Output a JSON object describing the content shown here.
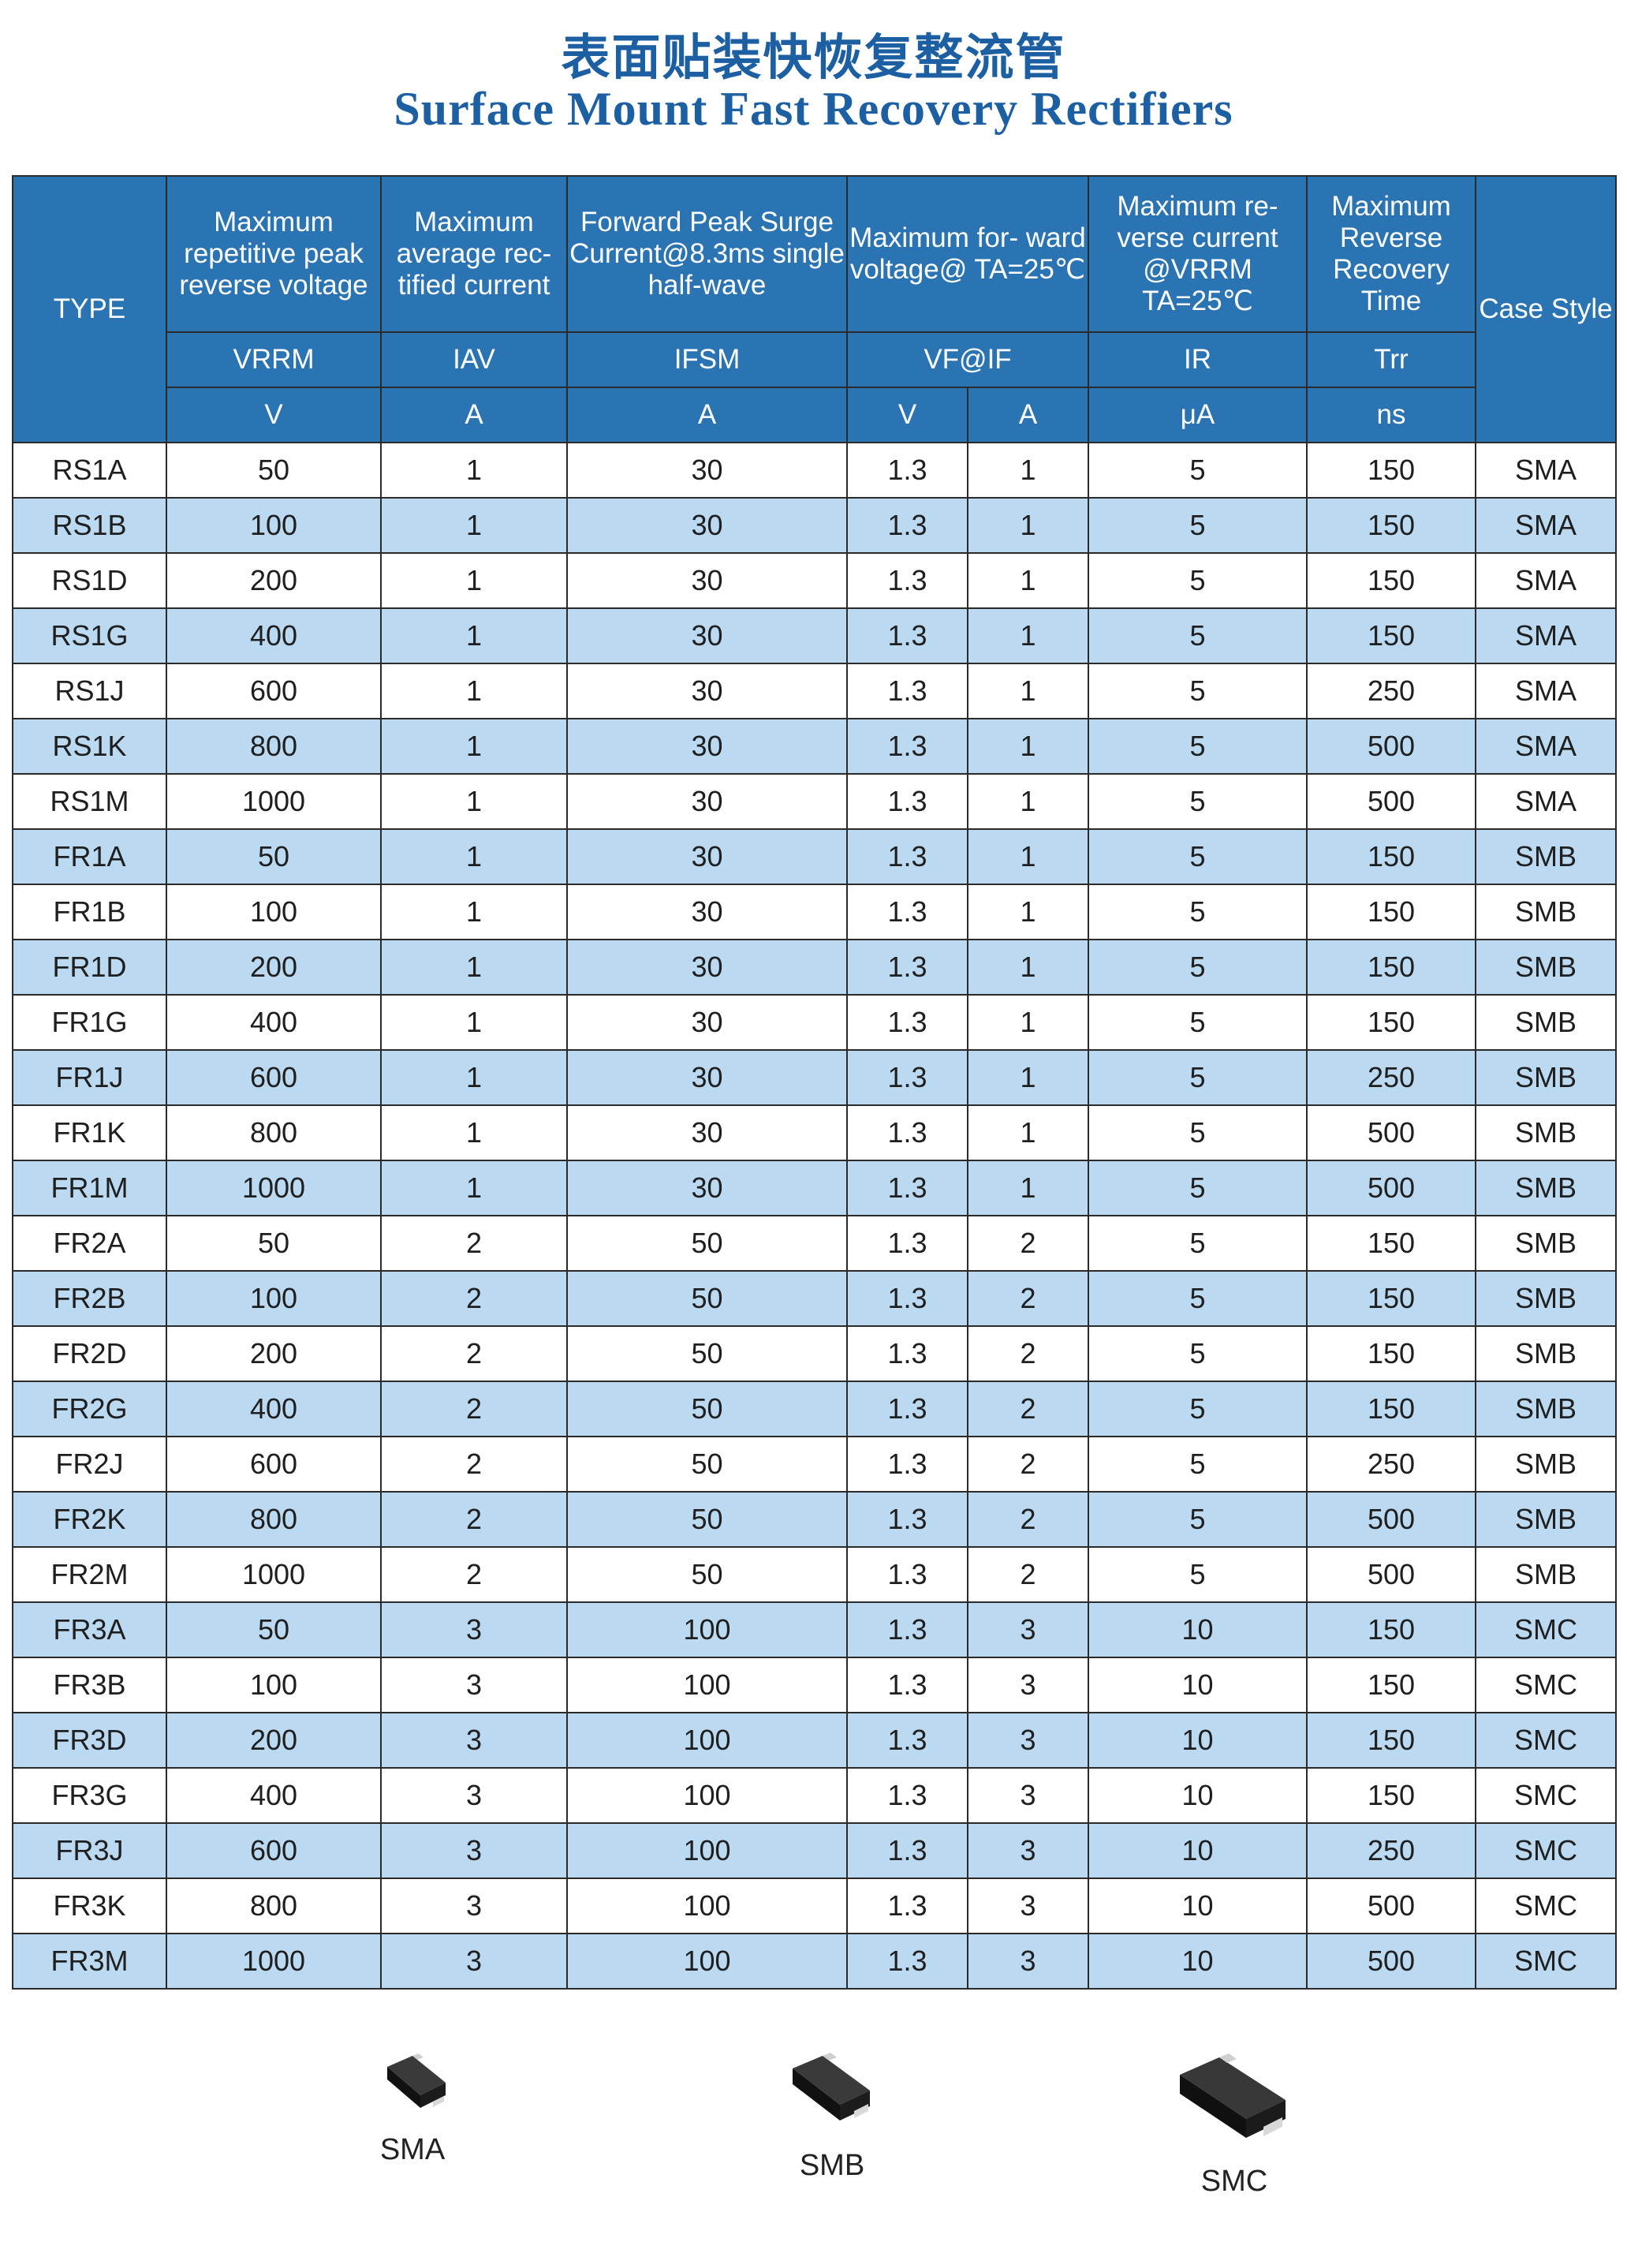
{
  "title_cn": "表面贴装快恢复整流管",
  "title_en": "Surface Mount Fast Recovery Rectifiers",
  "header": {
    "type": "TYPE",
    "vrrm_desc": "Maximum repetitive peak reverse voltage",
    "iav_desc": "Maximum average rec- tified current",
    "ifsm_desc": "Forward Peak Surge Current@8.3ms single half-wave",
    "vf_desc": "Maximum for- ward voltage@ TA=25℃",
    "ir_desc": "Maximum re- verse current @VRRM TA=25℃",
    "trr_desc": "Maximum Reverse Recovery Time",
    "case": "Case Style",
    "sym_vrrm": "VRRM",
    "sym_iav": "IAV",
    "sym_ifsm": "IFSM",
    "sym_vfif": "VF@IF",
    "sym_ir": "IR",
    "sym_trr": "Trr",
    "unit_vrrm": "V",
    "unit_iav": "A",
    "unit_ifsm": "A",
    "unit_vf": "V",
    "unit_if": "A",
    "unit_ir": "μA",
    "unit_trr": "ns"
  },
  "rows": [
    [
      "RS1A",
      "50",
      "1",
      "30",
      "1.3",
      "1",
      "5",
      "150",
      "SMA"
    ],
    [
      "RS1B",
      "100",
      "1",
      "30",
      "1.3",
      "1",
      "5",
      "150",
      "SMA"
    ],
    [
      "RS1D",
      "200",
      "1",
      "30",
      "1.3",
      "1",
      "5",
      "150",
      "SMA"
    ],
    [
      "RS1G",
      "400",
      "1",
      "30",
      "1.3",
      "1",
      "5",
      "150",
      "SMA"
    ],
    [
      "RS1J",
      "600",
      "1",
      "30",
      "1.3",
      "1",
      "5",
      "250",
      "SMA"
    ],
    [
      "RS1K",
      "800",
      "1",
      "30",
      "1.3",
      "1",
      "5",
      "500",
      "SMA"
    ],
    [
      "RS1M",
      "1000",
      "1",
      "30",
      "1.3",
      "1",
      "5",
      "500",
      "SMA"
    ],
    [
      "FR1A",
      "50",
      "1",
      "30",
      "1.3",
      "1",
      "5",
      "150",
      "SMB"
    ],
    [
      "FR1B",
      "100",
      "1",
      "30",
      "1.3",
      "1",
      "5",
      "150",
      "SMB"
    ],
    [
      "FR1D",
      "200",
      "1",
      "30",
      "1.3",
      "1",
      "5",
      "150",
      "SMB"
    ],
    [
      "FR1G",
      "400",
      "1",
      "30",
      "1.3",
      "1",
      "5",
      "150",
      "SMB"
    ],
    [
      "FR1J",
      "600",
      "1",
      "30",
      "1.3",
      "1",
      "5",
      "250",
      "SMB"
    ],
    [
      "FR1K",
      "800",
      "1",
      "30",
      "1.3",
      "1",
      "5",
      "500",
      "SMB"
    ],
    [
      "FR1M",
      "1000",
      "1",
      "30",
      "1.3",
      "1",
      "5",
      "500",
      "SMB"
    ],
    [
      "FR2A",
      "50",
      "2",
      "50",
      "1.3",
      "2",
      "5",
      "150",
      "SMB"
    ],
    [
      "FR2B",
      "100",
      "2",
      "50",
      "1.3",
      "2",
      "5",
      "150",
      "SMB"
    ],
    [
      "FR2D",
      "200",
      "2",
      "50",
      "1.3",
      "2",
      "5",
      "150",
      "SMB"
    ],
    [
      "FR2G",
      "400",
      "2",
      "50",
      "1.3",
      "2",
      "5",
      "150",
      "SMB"
    ],
    [
      "FR2J",
      "600",
      "2",
      "50",
      "1.3",
      "2",
      "5",
      "250",
      "SMB"
    ],
    [
      "FR2K",
      "800",
      "2",
      "50",
      "1.3",
      "2",
      "5",
      "500",
      "SMB"
    ],
    [
      "FR2M",
      "1000",
      "2",
      "50",
      "1.3",
      "2",
      "5",
      "500",
      "SMB"
    ],
    [
      "FR3A",
      "50",
      "3",
      "100",
      "1.3",
      "3",
      "10",
      "150",
      "SMC"
    ],
    [
      "FR3B",
      "100",
      "3",
      "100",
      "1.3",
      "3",
      "10",
      "150",
      "SMC"
    ],
    [
      "FR3D",
      "200",
      "3",
      "100",
      "1.3",
      "3",
      "10",
      "150",
      "SMC"
    ],
    [
      "FR3G",
      "400",
      "3",
      "100",
      "1.3",
      "3",
      "10",
      "150",
      "SMC"
    ],
    [
      "FR3J",
      "600",
      "3",
      "100",
      "1.3",
      "3",
      "10",
      "250",
      "SMC"
    ],
    [
      "FR3K",
      "800",
      "3",
      "100",
      "1.3",
      "3",
      "10",
      "500",
      "SMC"
    ],
    [
      "FR3M",
      "1000",
      "3",
      "100",
      "1.3",
      "3",
      "10",
      "500",
      "SMC"
    ]
  ],
  "packages": [
    {
      "label": "SMA",
      "icon": "sma-package-icon"
    },
    {
      "label": "SMB",
      "icon": "smb-package-icon"
    },
    {
      "label": "SMC",
      "icon": "smc-package-icon"
    }
  ],
  "colors": {
    "title": "#1d5fa3",
    "header_bg": "#2b74b3",
    "stripe": "#bbdaf2"
  }
}
